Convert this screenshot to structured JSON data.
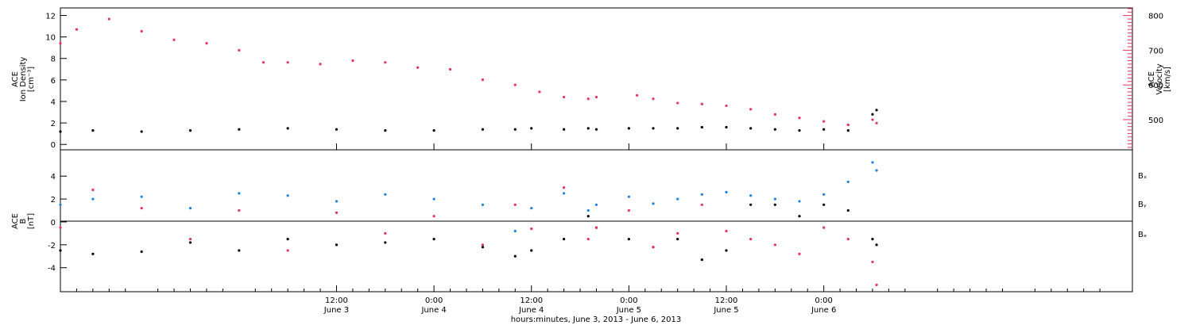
{
  "colors": {
    "black": "#000000",
    "velocity": "#e8335f",
    "by": "#1e82dc",
    "bz": "#e8335f"
  },
  "chart_data": [
    {
      "type": "scatter",
      "panel": "top",
      "x_axis": {
        "label": "hours:minutes, June  3, 2013 - June  6, 2013",
        "range_hours": [
          -22,
          110
        ],
        "tick_labels": [
          {
            "hour": 12,
            "time": "12:00",
            "date": "June 3"
          },
          {
            "hour": 24,
            "time": "0:00",
            "date": "June 4"
          },
          {
            "hour": 36,
            "time": "12:00",
            "date": "June 4"
          },
          {
            "hour": 48,
            "time": "0:00",
            "date": "June 5"
          },
          {
            "hour": 60,
            "time": "12:00",
            "date": "June 5"
          },
          {
            "hour": 72,
            "time": "0:00",
            "date": "June 6"
          }
        ]
      },
      "left_axis": {
        "label_lines": [
          "ACE",
          "Ion Density",
          "[cm⁻³]"
        ],
        "ylim": [
          -0.5,
          12.7
        ],
        "ticks": [
          0,
          2,
          4,
          6,
          8,
          10,
          12
        ]
      },
      "right_axis": {
        "label_lines": [
          "ACE",
          "Velocity",
          "[km/s]"
        ],
        "ylim": [
          413,
          822
        ],
        "ticks": [
          500,
          600,
          700,
          800
        ]
      },
      "series": [
        {
          "name": "Ion Density",
          "axis": "left",
          "color": "black",
          "points": [
            [
              -22,
              1.2
            ],
            [
              -18,
              1.3
            ],
            [
              -12,
              1.2
            ],
            [
              -6,
              1.3
            ],
            [
              0,
              1.4
            ],
            [
              6,
              1.5
            ],
            [
              12,
              1.4
            ],
            [
              18,
              1.3
            ],
            [
              24,
              1.3
            ],
            [
              30,
              1.4
            ],
            [
              34,
              1.4
            ],
            [
              36,
              1.5
            ],
            [
              40,
              1.4
            ],
            [
              43,
              1.5
            ],
            [
              44,
              1.4
            ],
            [
              48,
              1.5
            ],
            [
              51,
              1.5
            ],
            [
              54,
              1.5
            ],
            [
              57,
              1.6
            ],
            [
              60,
              1.6
            ],
            [
              63,
              1.5
            ],
            [
              66,
              1.4
            ],
            [
              69,
              1.3
            ],
            [
              72,
              1.4
            ],
            [
              75,
              1.3
            ],
            [
              78,
              2.8
            ],
            [
              78.5,
              3.2
            ]
          ]
        },
        {
          "name": "Velocity",
          "axis": "right",
          "color": "velocity",
          "points": [
            [
              -22,
              720
            ],
            [
              -20,
              760
            ],
            [
              -16,
              790
            ],
            [
              -12,
              755
            ],
            [
              -8,
              730
            ],
            [
              -4,
              720
            ],
            [
              0,
              700
            ],
            [
              3,
              665
            ],
            [
              6,
              665
            ],
            [
              10,
              660
            ],
            [
              14,
              670
            ],
            [
              18,
              665
            ],
            [
              22,
              650
            ],
            [
              26,
              645
            ],
            [
              30,
              615
            ],
            [
              34,
              600
            ],
            [
              37,
              580
            ],
            [
              40,
              565
            ],
            [
              43,
              560
            ],
            [
              44,
              565
            ],
            [
              49,
              570
            ],
            [
              51,
              560
            ],
            [
              54,
              548
            ],
            [
              57,
              545
            ],
            [
              60,
              540
            ],
            [
              63,
              530
            ],
            [
              66,
              515
            ],
            [
              69,
              505
            ],
            [
              72,
              495
            ],
            [
              75,
              485
            ],
            [
              78,
              500
            ],
            [
              78.5,
              490
            ]
          ]
        }
      ]
    },
    {
      "type": "scatter",
      "panel": "bottom",
      "left_axis": {
        "label_lines": [
          "ACE",
          "B",
          "[nT]"
        ],
        "ylim": [
          -6.1,
          6.3
        ],
        "ticks": [
          -4,
          -2,
          0,
          2,
          4
        ]
      },
      "legend": [
        "Bₓ",
        "Bᵧ",
        "Bₔ"
      ],
      "legend_placement": "right",
      "series": [
        {
          "name": "Bx",
          "color": "black",
          "points": [
            [
              -22,
              -2.5
            ],
            [
              -18,
              -2.8
            ],
            [
              -12,
              -2.6
            ],
            [
              -6,
              -1.8
            ],
            [
              0,
              -2.5
            ],
            [
              6,
              -1.5
            ],
            [
              12,
              -2.0
            ],
            [
              18,
              -1.8
            ],
            [
              24,
              -1.5
            ],
            [
              30,
              -2.2
            ],
            [
              34,
              -3.0
            ],
            [
              36,
              -2.5
            ],
            [
              40,
              -1.5
            ],
            [
              43,
              0.5
            ],
            [
              44,
              -0.5
            ],
            [
              48,
              -1.5
            ],
            [
              51,
              -2.2
            ],
            [
              54,
              -1.5
            ],
            [
              57,
              -3.3
            ],
            [
              60,
              -2.5
            ],
            [
              63,
              1.5
            ],
            [
              66,
              1.5
            ],
            [
              69,
              0.5
            ],
            [
              72,
              1.5
            ],
            [
              75,
              1.0
            ],
            [
              78,
              -1.5
            ],
            [
              78.5,
              -2.0
            ]
          ]
        },
        {
          "name": "By",
          "color": "by",
          "points": [
            [
              -22,
              1.5
            ],
            [
              -18,
              2.0
            ],
            [
              -12,
              2.2
            ],
            [
              -6,
              1.2
            ],
            [
              0,
              2.5
            ],
            [
              6,
              2.3
            ],
            [
              12,
              1.8
            ],
            [
              18,
              2.4
            ],
            [
              24,
              2.0
            ],
            [
              30,
              1.5
            ],
            [
              34,
              -0.8
            ],
            [
              36,
              1.2
            ],
            [
              40,
              2.5
            ],
            [
              43,
              1.0
            ],
            [
              44,
              1.5
            ],
            [
              48,
              2.2
            ],
            [
              51,
              1.6
            ],
            [
              54,
              2.0
            ],
            [
              57,
              2.4
            ],
            [
              60,
              2.6
            ],
            [
              63,
              2.3
            ],
            [
              66,
              2.0
            ],
            [
              69,
              1.8
            ],
            [
              72,
              2.4
            ],
            [
              75,
              3.5
            ],
            [
              78,
              5.2
            ],
            [
              78.5,
              4.5
            ]
          ]
        },
        {
          "name": "Bz",
          "color": "bz",
          "points": [
            [
              -22,
              -0.5
            ],
            [
              -18,
              2.8
            ],
            [
              -12,
              1.2
            ],
            [
              -6,
              -1.5
            ],
            [
              0,
              1.0
            ],
            [
              6,
              -2.5
            ],
            [
              12,
              0.8
            ],
            [
              18,
              -1.0
            ],
            [
              24,
              0.5
            ],
            [
              30,
              -2.0
            ],
            [
              34,
              1.5
            ],
            [
              36,
              -0.6
            ],
            [
              40,
              3.0
            ],
            [
              43,
              -1.5
            ],
            [
              44,
              -0.5
            ],
            [
              48,
              1.0
            ],
            [
              51,
              -2.2
            ],
            [
              54,
              -1.0
            ],
            [
              57,
              1.5
            ],
            [
              60,
              -0.8
            ],
            [
              63,
              -1.5
            ],
            [
              66,
              -2.0
            ],
            [
              69,
              -2.8
            ],
            [
              72,
              -0.5
            ],
            [
              75,
              -1.5
            ],
            [
              78,
              -3.5
            ],
            [
              78.5,
              -5.5
            ]
          ]
        }
      ]
    }
  ]
}
